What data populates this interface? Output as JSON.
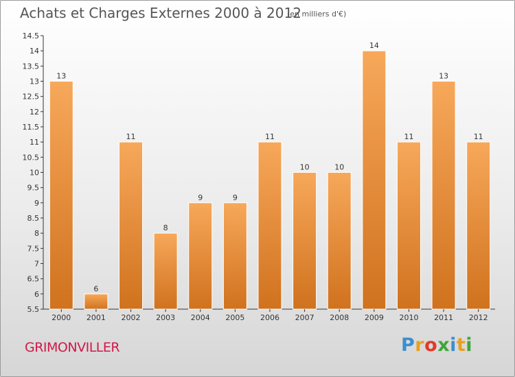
{
  "title": "Achats et Charges Externes 2000 à 2012",
  "subtitle": "(en milliers d'€)",
  "commune": "GRIMONVILLER",
  "logo": {
    "text": "Proxiti",
    "letters": [
      "P",
      "r",
      "o",
      "x",
      "i",
      "t",
      "i"
    ],
    "colors": [
      "#3a8fd0",
      "#e8a020",
      "#e23a2a",
      "#3fa63a",
      "#3a8fd0",
      "#e8a020",
      "#3fa63a"
    ]
  },
  "colors": {
    "bar_top": "#f7a85a",
    "bar_bottom": "#d0721e",
    "commune": "#d01848"
  },
  "chart_data": {
    "type": "bar",
    "title": "Achats et Charges Externes 2000 à 2012",
    "subtitle": "(en milliers d'€)",
    "categories": [
      "2000",
      "2001",
      "2002",
      "2003",
      "2004",
      "2005",
      "2006",
      "2007",
      "2008",
      "2009",
      "2010",
      "2011",
      "2012"
    ],
    "values": [
      13,
      6,
      11,
      8,
      9,
      9,
      11,
      10,
      10,
      14,
      11,
      13,
      11
    ],
    "ylim": [
      5.5,
      14.5
    ],
    "yticks": [
      "5.5",
      "6",
      "6.5",
      "7",
      "7.5",
      "8",
      "8.5",
      "9",
      "9.5",
      "10",
      "10.5",
      "11",
      "11.5",
      "12",
      "12.5",
      "13",
      "13.5",
      "14",
      "14.5"
    ],
    "grid": false,
    "data_labels": true
  }
}
